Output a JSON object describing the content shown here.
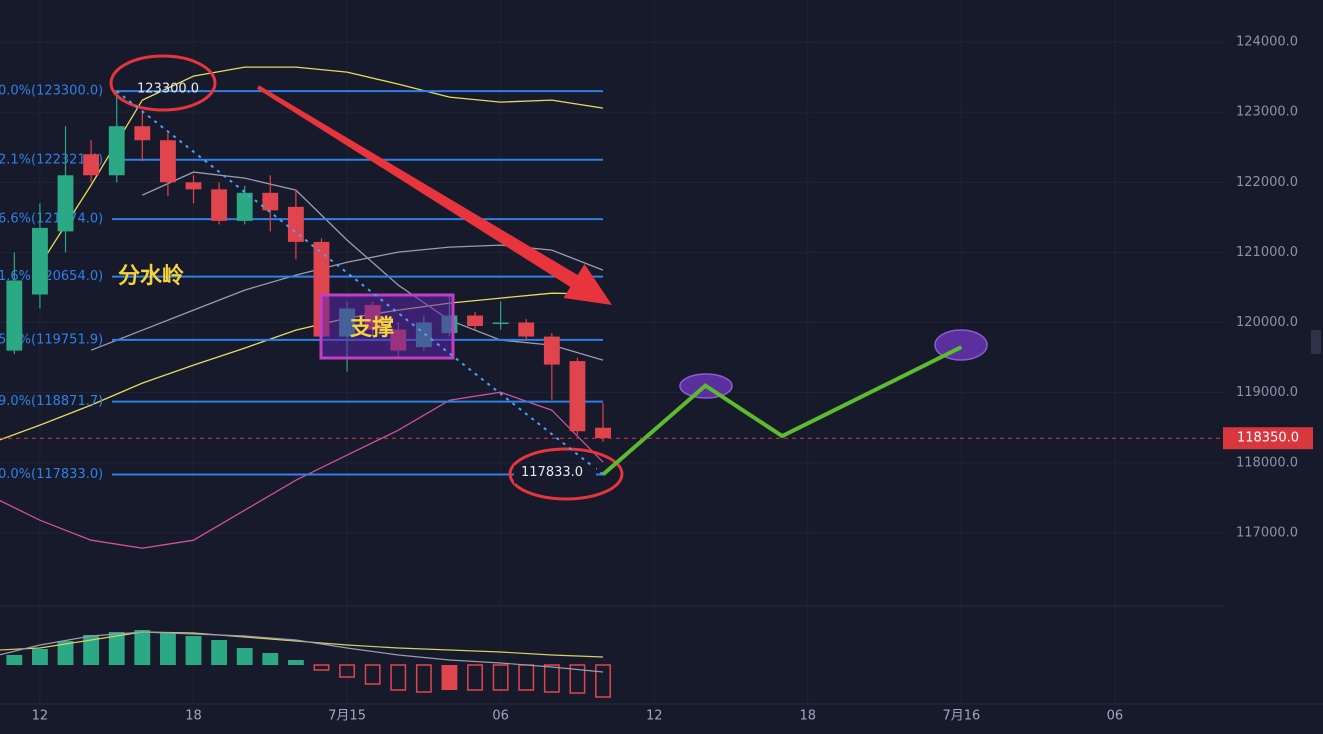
{
  "chart_data": {
    "type": "candlestick",
    "xlim": [
      -1.56,
      46.3
    ],
    "ylim": [
      116000,
      124600
    ],
    "xticks": [
      {
        "value": 0,
        "label": "12"
      },
      {
        "value": 6,
        "label": "18"
      },
      {
        "value": 12,
        "label": "7月15"
      },
      {
        "value": 18,
        "label": "06"
      },
      {
        "value": 24,
        "label": "12"
      },
      {
        "value": 30,
        "label": "18"
      },
      {
        "value": 36,
        "label": "7月16"
      },
      {
        "value": 42,
        "label": "06"
      }
    ],
    "yticks": [
      {
        "value": 124000,
        "label": "124000.0"
      },
      {
        "value": 123000,
        "label": "123000.0"
      },
      {
        "value": 122000,
        "label": "122000.0"
      },
      {
        "value": 121000,
        "label": "121000.0"
      },
      {
        "value": 120000,
        "label": "120000.0"
      },
      {
        "value": 119000,
        "label": "119000.0"
      },
      {
        "value": 118000,
        "label": "118000.0"
      },
      {
        "value": 117000,
        "label": "117000.0"
      }
    ],
    "grid": true,
    "up_color": "#2aa984",
    "down_color": "#e0454d",
    "candles": {
      "x": [
        -1,
        0,
        1,
        2,
        3,
        4,
        5,
        6,
        7,
        8,
        9,
        10,
        11,
        12,
        13,
        14,
        15,
        16,
        17,
        18,
        19,
        20,
        21,
        22
      ],
      "open": [
        119600,
        120400,
        121300,
        122400,
        122100,
        122800,
        122600,
        122000,
        121900,
        121450,
        121850,
        121650,
        121150,
        119800,
        120250,
        119900,
        119650,
        119850,
        120100,
        119980,
        120000,
        119800,
        119450,
        118500
      ],
      "high": [
        121000,
        121700,
        122800,
        122600,
        123300,
        123000,
        122700,
        122100,
        122000,
        121950,
        122100,
        121900,
        121200,
        120300,
        120300,
        120000,
        120100,
        120400,
        120150,
        120300,
        120050,
        119850,
        119500,
        118850
      ],
      "low": [
        119550,
        120200,
        121000,
        122000,
        122000,
        122300,
        121800,
        121700,
        121400,
        121400,
        121300,
        120900,
        119700,
        119300,
        119800,
        119500,
        119600,
        119800,
        119900,
        119900,
        119750,
        118900,
        118400,
        118300
      ],
      "close": [
        120600,
        121350,
        122100,
        122100,
        122800,
        122600,
        122000,
        121900,
        121450,
        121850,
        121600,
        121150,
        119800,
        120200,
        119900,
        119600,
        120000,
        120100,
        119950,
        120000,
        119800,
        119400,
        118450,
        118350
      ]
    },
    "line_x": [
      -1.6,
      0,
      2,
      4,
      6,
      8,
      10,
      12,
      14,
      16,
      18,
      20,
      22
    ],
    "lines": [
      {
        "color": "#e6dc5a",
        "values": [
          null,
          120819,
          121960,
          123173,
          123515,
          123643,
          123643,
          123572,
          123401,
          123215,
          123144,
          123173,
          123058
        ]
      },
      {
        "color": "#e6dc5a",
        "values": [
          118322,
          118537,
          118822,
          119136,
          119393,
          119635,
          119892,
          120063,
          120177,
          120277,
          120348,
          120419,
          120405
        ]
      },
      {
        "color": "#9a9cb2",
        "values": [
          null,
          null,
          null,
          121817,
          122146,
          122060,
          121889,
          121176,
          120534,
          120034,
          119749,
          119678,
          119464
        ]
      },
      {
        "color": "#9a9cb2",
        "values": [
          null,
          null,
          119606,
          119891,
          120177,
          120462,
          120676,
          120861,
          121004,
          121076,
          121104,
          121033,
          120748
        ]
      },
      {
        "color": "#d0509a",
        "values": [
          117467,
          117181,
          116896,
          116782,
          116896,
          117324,
          117752,
          118109,
          118465,
          118893,
          119007,
          118750,
          118009
        ]
      }
    ],
    "fib_color": "#2f80e8",
    "fib_levels": [
      {
        "value": 123300.0,
        "label": "0.0%(123300.0)"
      },
      {
        "value": 122321.4,
        "label": "2.1%(122321.4)"
      },
      {
        "value": 121474.0,
        "label": "6.6%(121474.0)"
      },
      {
        "value": 120654.0,
        "label": "1.6%(120654.0)"
      },
      {
        "value": 119751.9,
        "label": "5.1%(119751.9)"
      },
      {
        "value": 118871.7,
        "label": "9.0%(118871.7)"
      },
      {
        "value": 117833.0,
        "label": "0.0%(117833.0)"
      }
    ],
    "high_mark": {
      "value": 123300,
      "label": "123300.0"
    },
    "low_mark": {
      "value": 117833,
      "label": "117833.0"
    },
    "last_price": {
      "value": 118350,
      "label": "118350.0"
    },
    "annotations": [
      "分水岭",
      "支撑"
    ],
    "projection": {
      "x": [
        22,
        26,
        29,
        36
      ],
      "values": [
        117833,
        119100,
        118380,
        119650
      ],
      "color": "#5dbb2e"
    },
    "macd": {
      "ylim": [
        -40,
        40
      ],
      "histogram": [
        10,
        16,
        24,
        30,
        33,
        35,
        33,
        29,
        25,
        17,
        12,
        5,
        -5,
        -12,
        -19,
        -25,
        -27,
        -25,
        -25,
        -25,
        -25,
        -27,
        -28,
        -32
      ],
      "lines": [
        {
          "color": "#d8d060",
          "values": [
            15,
            17,
            25,
            33,
            32,
            28,
            24,
            20,
            17,
            15,
            13,
            10,
            8
          ]
        },
        {
          "color": "#9a9cb0",
          "values": [
            10,
            20,
            29,
            33,
            31,
            29,
            25,
            17,
            10,
            5,
            2,
            -2,
            -7
          ]
        }
      ]
    }
  }
}
